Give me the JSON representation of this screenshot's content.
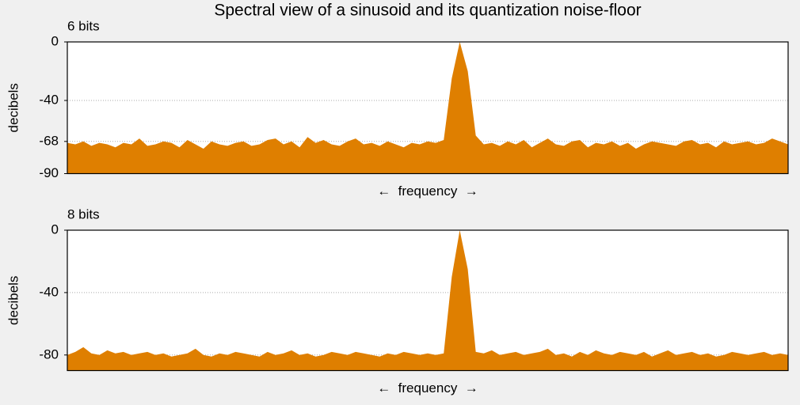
{
  "title": "Spectral view of a sinusoid and its quantization noise-floor",
  "chart_data": [
    {
      "type": "area",
      "title": "6 bits",
      "xlabel": "←  frequency  →",
      "ylabel": "decibels",
      "color": "#df7f00",
      "ylim": [
        -90,
        0
      ],
      "yticks": [
        0,
        -40,
        -68,
        -90
      ],
      "grid": true,
      "values": [
        -69,
        -70,
        -68,
        -71,
        -69,
        -70,
        -72,
        -69,
        -70,
        -66,
        -71,
        -70,
        -68,
        -69,
        -72,
        -67,
        -70,
        -73,
        -68,
        -70,
        -71,
        -69,
        -68,
        -71,
        -70,
        -67,
        -66,
        -70,
        -68,
        -72,
        -65,
        -69,
        -67,
        -70,
        -71,
        -68,
        -66,
        -70,
        -69,
        -71,
        -68,
        -70,
        -72,
        -69,
        -70,
        -68,
        -69,
        -67,
        -25,
        0,
        -20,
        -64,
        -70,
        -69,
        -71,
        -68,
        -70,
        -67,
        -72,
        -69,
        -66,
        -70,
        -71,
        -68,
        -67,
        -72,
        -69,
        -70,
        -68,
        -71,
        -69,
        -73,
        -70,
        -68,
        -69,
        -70,
        -71,
        -68,
        -67,
        -70,
        -69,
        -72,
        -68,
        -70,
        -69,
        -68,
        -70,
        -69,
        -66,
        -68,
        -70
      ]
    },
    {
      "type": "area",
      "title": "8 bits",
      "xlabel": "←  frequency  →",
      "ylabel": "decibels",
      "color": "#df7f00",
      "ylim": [
        -90,
        0
      ],
      "yticks": [
        0,
        -40,
        -80
      ],
      "grid": true,
      "values": [
        -80,
        -78,
        -75,
        -79,
        -80,
        -77,
        -79,
        -78,
        -80,
        -79,
        -78,
        -80,
        -79,
        -81,
        -80,
        -79,
        -76,
        -80,
        -81,
        -79,
        -80,
        -78,
        -79,
        -80,
        -81,
        -78,
        -80,
        -79,
        -77,
        -80,
        -79,
        -81,
        -80,
        -78,
        -79,
        -80,
        -78,
        -79,
        -80,
        -81,
        -79,
        -80,
        -78,
        -79,
        -80,
        -79,
        -80,
        -79,
        -30,
        0,
        -25,
        -78,
        -79,
        -77,
        -80,
        -79,
        -78,
        -80,
        -79,
        -78,
        -76,
        -80,
        -79,
        -81,
        -78,
        -80,
        -77,
        -79,
        -80,
        -78,
        -79,
        -80,
        -78,
        -81,
        -79,
        -77,
        -80,
        -79,
        -78,
        -80,
        -79,
        -81,
        -80,
        -78,
        -79,
        -80,
        -79,
        -78,
        -80,
        -79,
        -80
      ]
    }
  ]
}
